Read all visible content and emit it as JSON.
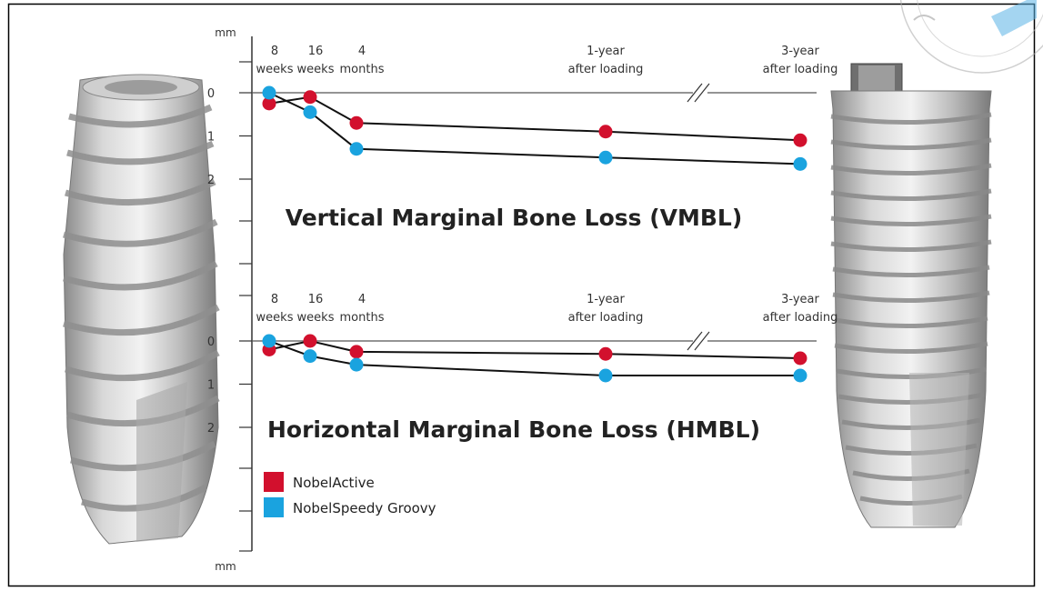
{
  "chart_data": [
    {
      "type": "line",
      "title": "Vertical Marginal Bone Loss (VMBL)",
      "ylabel": "mm",
      "ylim": [
        0,
        2
      ],
      "y_inverted": true,
      "y_ticks": [
        "0",
        "1",
        "2"
      ],
      "categories": [
        [
          "8",
          "weeks"
        ],
        [
          "16",
          "weeks"
        ],
        [
          "4",
          "months"
        ],
        [
          "1-year",
          "after loading"
        ],
        [
          "3-year",
          "after loading"
        ]
      ],
      "axis_break_between": [
        3,
        4
      ],
      "series": [
        {
          "name": "NobelActive",
          "color": "#d2102d",
          "values": [
            0.25,
            0.1,
            0.7,
            0.9,
            1.1
          ]
        },
        {
          "name": "NobelSpeedy Groovy",
          "color": "#1aa3df",
          "values": [
            0.0,
            0.45,
            1.3,
            1.5,
            1.65
          ]
        }
      ]
    },
    {
      "type": "line",
      "title": "Horizontal Marginal Bone Loss (HMBL)",
      "ylabel": "mm",
      "ylim": [
        0,
        2
      ],
      "y_inverted": true,
      "y_ticks": [
        "0",
        "1",
        "2"
      ],
      "categories": [
        [
          "8",
          "weeks"
        ],
        [
          "16",
          "weeks"
        ],
        [
          "4",
          "months"
        ],
        [
          "1-year",
          "after loading"
        ],
        [
          "3-year",
          "after loading"
        ]
      ],
      "axis_break_between": [
        3,
        4
      ],
      "series": [
        {
          "name": "NobelActive",
          "color": "#d2102d",
          "values": [
            0.2,
            0.0,
            0.25,
            0.3,
            0.4
          ]
        },
        {
          "name": "NobelSpeedy Groovy",
          "color": "#1aa3df",
          "values": [
            0.0,
            0.35,
            0.55,
            0.8,
            0.8
          ]
        }
      ]
    }
  ],
  "axis": {
    "unit_top": "mm",
    "unit_bottom": "mm"
  },
  "legend": [
    {
      "label": "NobelActive",
      "color": "#d2102d"
    },
    {
      "label": "NobelSpeedy Groovy",
      "color": "#1aa3df"
    }
  ],
  "illustrations": {
    "left": "implant-left-icon",
    "right": "implant-right-icon"
  }
}
